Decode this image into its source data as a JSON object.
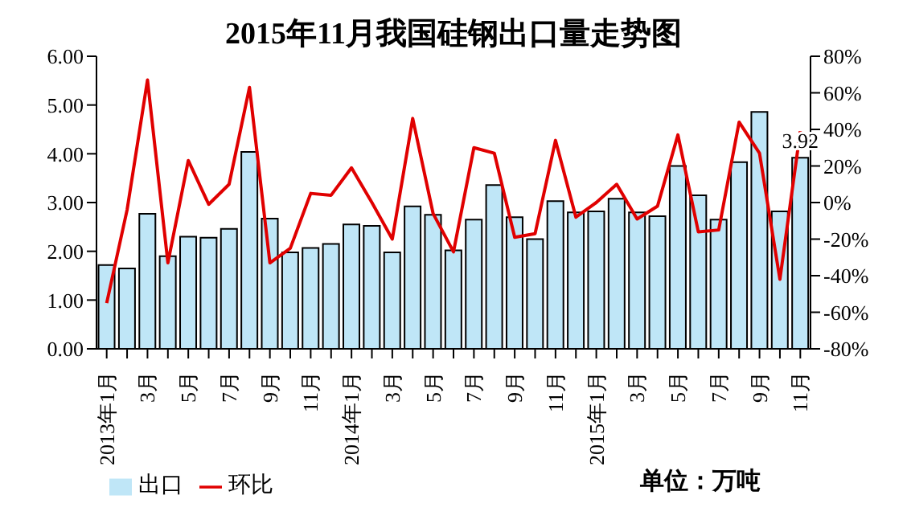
{
  "chart_data": {
    "type": "bar",
    "title": "2015年11月我国硅钢出口量走势图",
    "categories": [
      "2013年1月",
      null,
      "3月",
      null,
      "5月",
      null,
      "7月",
      null,
      "9月",
      null,
      "11月",
      null,
      "2014年1月",
      null,
      "3月",
      null,
      "5月",
      null,
      "7月",
      null,
      "9月",
      null,
      "11月",
      null,
      "2015年1月",
      null,
      "3月",
      null,
      "5月",
      null,
      "7月",
      null,
      "9月",
      null,
      "11月"
    ],
    "series": [
      {
        "name": "出口",
        "color": "#bfe6f7",
        "values": [
          1.72,
          1.65,
          2.77,
          1.9,
          2.3,
          2.28,
          2.46,
          4.04,
          2.67,
          1.98,
          2.07,
          2.15,
          2.55,
          2.52,
          1.98,
          2.92,
          2.75,
          2.02,
          2.65,
          3.36,
          2.7,
          2.25,
          3.03,
          2.8,
          2.82,
          3.08,
          2.8,
          2.72,
          3.75,
          3.15,
          2.65,
          3.83,
          4.86,
          2.82,
          3.92
        ],
        "value_labels": [
          null,
          null,
          null,
          null,
          null,
          null,
          null,
          null,
          null,
          null,
          null,
          null,
          null,
          null,
          null,
          null,
          null,
          null,
          null,
          null,
          null,
          null,
          null,
          null,
          null,
          null,
          null,
          null,
          null,
          null,
          null,
          null,
          null,
          null,
          "3.92"
        ]
      },
      {
        "name": "环比",
        "type": "line",
        "axis": "y2",
        "color": "#e00000",
        "values": [
          -55,
          -4,
          67,
          -33,
          23,
          -1,
          10,
          63,
          -33,
          -25,
          5,
          4,
          19,
          0,
          -20,
          46,
          -6,
          -27,
          30,
          27,
          -19,
          -17,
          34,
          -8,
          0,
          10,
          -9,
          -2,
          37,
          -16,
          -15,
          44,
          27,
          -42,
          39
        ]
      }
    ],
    "ylim": [
      0,
      6
    ],
    "yticks": [
      {
        "value": 0,
        "label": "0.00"
      },
      {
        "value": 1,
        "label": "1.00"
      },
      {
        "value": 2,
        "label": "2.00"
      },
      {
        "value": 3,
        "label": "3.00"
      },
      {
        "value": 4,
        "label": "4.00"
      },
      {
        "value": 5,
        "label": "5.00"
      },
      {
        "value": 6,
        "label": "6.00"
      }
    ],
    "y2lim": [
      -80,
      80
    ],
    "y2ticks": [
      {
        "value": -80,
        "label": "-80%"
      },
      {
        "value": -60,
        "label": "-60%"
      },
      {
        "value": -40,
        "label": "-40%"
      },
      {
        "value": -20,
        "label": "-20%"
      },
      {
        "value": 0,
        "label": "0%"
      },
      {
        "value": 20,
        "label": "20%"
      },
      {
        "value": 40,
        "label": "40%"
      },
      {
        "value": 60,
        "label": "60%"
      },
      {
        "value": 80,
        "label": "80%"
      }
    ],
    "legend": "bottom left",
    "marker": "none",
    "annotations": [
      "单位：万吨"
    ]
  }
}
